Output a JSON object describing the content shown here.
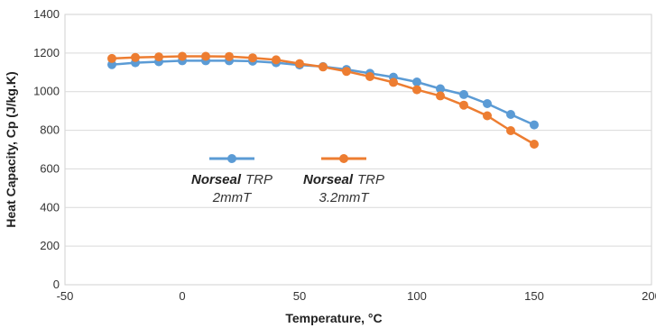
{
  "chart_data": {
    "type": "line",
    "title": "",
    "xlabel": "Temperature, °C",
    "ylabel": "Heat Capacity, Cp (J/kg.K)",
    "xlim": [
      -50,
      200
    ],
    "ylim": [
      0,
      1400
    ],
    "xticks": [
      -50,
      0,
      50,
      100,
      150,
      200
    ],
    "yticks": [
      0,
      200,
      400,
      600,
      800,
      1000,
      1200,
      1400
    ],
    "grid": "horizontal",
    "legend_position": "inside-center-left",
    "series": [
      {
        "name_brand": "Norseal",
        "name_rest": "TRP",
        "name_line2": "2mmT",
        "color": "#5b9bd5",
        "x": [
          -30,
          -20,
          -10,
          0,
          10,
          20,
          30,
          40,
          50,
          60,
          70,
          80,
          90,
          100,
          110,
          120,
          130,
          140,
          150
        ],
        "y": [
          1140,
          1150,
          1155,
          1160,
          1160,
          1160,
          1158,
          1150,
          1138,
          1130,
          1115,
          1095,
          1075,
          1050,
          1015,
          985,
          938,
          882,
          828
        ]
      },
      {
        "name_brand": "Norseal",
        "name_rest": "TRP",
        "name_line2": "3.2mmT",
        "color": "#ed7d31",
        "x": [
          -30,
          -20,
          -10,
          0,
          10,
          20,
          30,
          40,
          50,
          60,
          70,
          80,
          90,
          100,
          110,
          120,
          130,
          140,
          150
        ],
        "y": [
          1172,
          1177,
          1180,
          1183,
          1183,
          1182,
          1175,
          1165,
          1145,
          1128,
          1105,
          1078,
          1048,
          1010,
          978,
          930,
          875,
          798,
          728
        ]
      }
    ]
  }
}
